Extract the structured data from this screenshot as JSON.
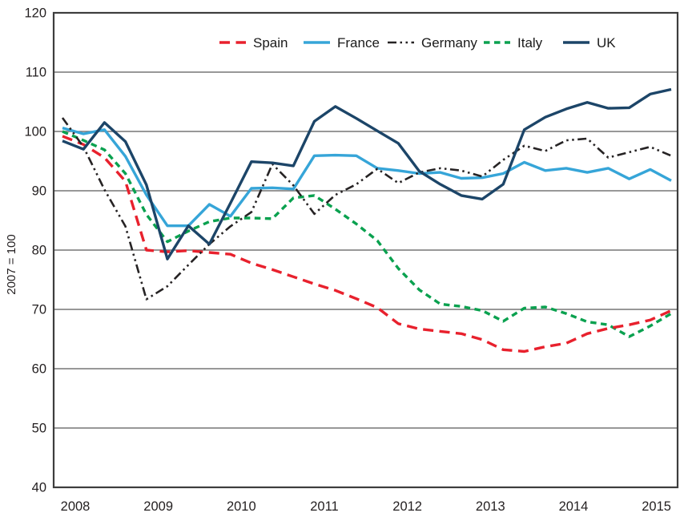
{
  "figure": {
    "background": "#ffffff",
    "border_color": "#3d3d3d",
    "gridline_color": "#767676",
    "text_color": "#231f20"
  },
  "chart_data": {
    "type": "line",
    "title": "",
    "xlabel": "",
    "ylabel": "2007 = 100",
    "ylim": [
      40,
      120
    ],
    "y_step": 10,
    "y_tick_labels": [
      "40",
      "50",
      "60",
      "70",
      "80",
      "90",
      "100",
      "110",
      "120"
    ],
    "x_tick_labels": [
      "2008",
      "2009",
      "2010",
      "2011",
      "2012",
      "2013",
      "2014",
      "2015"
    ],
    "x_frequency": "quarterly",
    "x_range": "2008Q1 to 2015Q2",
    "grid": "horizontal-only",
    "legend_position": "top",
    "series": [
      {
        "name": "Spain",
        "color": "#e8212d",
        "style": "long-dash",
        "values": [
          99.2,
          97.8,
          95.6,
          91.6,
          80.0,
          79.7,
          79.9,
          79.6,
          79.3,
          77.8,
          76.7,
          75.5,
          74.3,
          73.2,
          71.8,
          70.3,
          67.6,
          66.7,
          66.3,
          65.9,
          64.9,
          63.2,
          62.9,
          63.7,
          64.3,
          65.9,
          66.8,
          67.4,
          68.2,
          69.8
        ]
      },
      {
        "name": "France",
        "color": "#36a5d8",
        "style": "solid",
        "values": [
          100.6,
          99.6,
          100.3,
          95.8,
          89.3,
          84.1,
          84.1,
          87.7,
          85.7,
          90.4,
          90.5,
          90.3,
          95.9,
          96.0,
          95.9,
          93.8,
          93.4,
          92.9,
          93.1,
          92.1,
          92.2,
          92.9,
          94.8,
          93.4,
          93.8,
          93.1,
          93.8,
          92.0,
          93.6,
          91.7
        ]
      },
      {
        "name": "Germany",
        "color": "#262324",
        "style": "dash-dot-dot",
        "values": [
          102.3,
          97.4,
          90.2,
          84.0,
          71.7,
          73.9,
          77.5,
          81.0,
          84.0,
          86.4,
          94.5,
          90.9,
          86.1,
          89.3,
          91.1,
          93.7,
          91.3,
          93.1,
          93.8,
          93.4,
          92.4,
          95.2,
          97.6,
          96.7,
          98.5,
          98.8,
          95.6,
          96.5,
          97.4,
          95.9
        ]
      },
      {
        "name": "Italy",
        "color": "#0aa14f",
        "style": "short-dash",
        "values": [
          100.0,
          98.5,
          96.9,
          92.9,
          86.0,
          81.4,
          83.2,
          84.8,
          85.4,
          85.4,
          85.3,
          88.8,
          89.2,
          86.9,
          84.4,
          81.6,
          76.9,
          73.3,
          70.9,
          70.5,
          69.8,
          68.0,
          70.2,
          70.4,
          69.3,
          67.9,
          67.4,
          65.4,
          67.2,
          69.3
        ]
      },
      {
        "name": "UK",
        "color": "#1c4568",
        "style": "solid",
        "values": [
          98.4,
          97.0,
          101.5,
          98.3,
          91.0,
          78.5,
          84.1,
          81.0,
          87.9,
          94.9,
          94.7,
          94.2,
          101.7,
          104.2,
          102.2,
          100.1,
          98.0,
          93.3,
          91.1,
          89.2,
          88.6,
          91.1,
          100.3,
          102.4,
          103.8,
          104.9,
          103.9,
          104.0,
          106.3,
          107.1
        ]
      }
    ],
    "legend": [
      "Spain",
      "France",
      "Germany",
      "Italy",
      "UK"
    ]
  }
}
